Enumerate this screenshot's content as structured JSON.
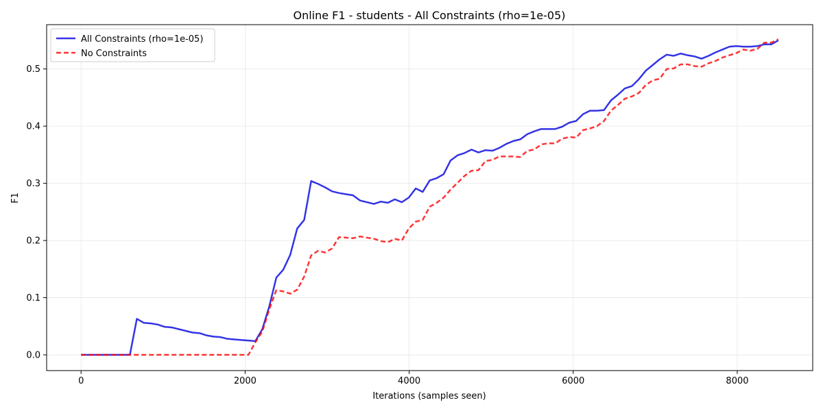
{
  "chart_data": {
    "type": "line",
    "title": "Online F1 - students - All Constraints (rho=1e-05)",
    "xlabel": "Iterations (samples seen)",
    "ylabel": "F1",
    "xlim": [
      -420,
      8920
    ],
    "ylim": [
      -0.0275,
      0.5775
    ],
    "x_ticks": [
      0,
      2000,
      4000,
      6000,
      8000
    ],
    "x_tick_labels": [
      "0",
      "2000",
      "4000",
      "6000",
      "8000"
    ],
    "y_ticks": [
      0.0,
      0.1,
      0.2,
      0.3,
      0.4,
      0.5
    ],
    "y_tick_labels": [
      "0.0",
      "0.1",
      "0.2",
      "0.3",
      "0.4",
      "0.5"
    ],
    "grid": true,
    "legend_position": "top-left",
    "series": [
      {
        "name": "All Constraints (rho=1e-05)",
        "color": "#0000e0",
        "style": "solid",
        "x": [
          0,
          85,
          170,
          255,
          340,
          425,
          510,
          595,
          680,
          765,
          850,
          935,
          1020,
          1105,
          1190,
          1275,
          1360,
          1445,
          1530,
          1615,
          1700,
          1785,
          1870,
          1955,
          2040,
          2125,
          2210,
          2295,
          2380,
          2465,
          2550,
          2635,
          2720,
          2805,
          2890,
          2975,
          3060,
          3145,
          3230,
          3315,
          3400,
          3485,
          3570,
          3655,
          3740,
          3825,
          3910,
          3995,
          4080,
          4165,
          4250,
          4335,
          4420,
          4505,
          4590,
          4675,
          4760,
          4845,
          4930,
          5015,
          5100,
          5185,
          5270,
          5355,
          5440,
          5525,
          5610,
          5695,
          5780,
          5865,
          5950,
          6035,
          6120,
          6205,
          6290,
          6375,
          6460,
          6545,
          6630,
          6715,
          6800,
          6885,
          6970,
          7055,
          7140,
          7225,
          7310,
          7395,
          7480,
          7565,
          7650,
          7735,
          7820,
          7905,
          7990,
          8075,
          8160,
          8245,
          8330,
          8415,
          8500
        ],
        "y": [
          0,
          0,
          0,
          0,
          0,
          0,
          0,
          0,
          0.063,
          0.056,
          0.055,
          0.053,
          0.049,
          0.048,
          0.045,
          0.042,
          0.039,
          0.038,
          0.034,
          0.032,
          0.031,
          0.028,
          0.027,
          0.026,
          0.025,
          0.024,
          0.045,
          0.085,
          0.135,
          0.149,
          0.175,
          0.221,
          0.236,
          0.304,
          0.299,
          0.293,
          0.286,
          0.283,
          0.281,
          0.279,
          0.27,
          0.267,
          0.264,
          0.268,
          0.266,
          0.272,
          0.267,
          0.275,
          0.291,
          0.285,
          0.305,
          0.309,
          0.316,
          0.34,
          0.349,
          0.353,
          0.359,
          0.354,
          0.358,
          0.357,
          0.362,
          0.369,
          0.374,
          0.377,
          0.386,
          0.391,
          0.395,
          0.395,
          0.395,
          0.399,
          0.406,
          0.409,
          0.421,
          0.427,
          0.427,
          0.428,
          0.445,
          0.455,
          0.466,
          0.47,
          0.482,
          0.497,
          0.507,
          0.517,
          0.525,
          0.523,
          0.527,
          0.524,
          0.522,
          0.518,
          0.523,
          0.529,
          0.534,
          0.539,
          0.54,
          0.539,
          0.539,
          0.54,
          0.543,
          0.543,
          0.55
        ]
      },
      {
        "name": "No Constraints",
        "color": "#ff0000",
        "style": "dashed",
        "x": [
          0,
          85,
          170,
          255,
          340,
          425,
          510,
          595,
          680,
          765,
          850,
          935,
          1020,
          1105,
          1190,
          1275,
          1360,
          1445,
          1530,
          1615,
          1700,
          1785,
          1870,
          1955,
          2040,
          2125,
          2210,
          2295,
          2380,
          2465,
          2550,
          2635,
          2720,
          2805,
          2890,
          2975,
          3060,
          3145,
          3230,
          3315,
          3400,
          3485,
          3570,
          3655,
          3740,
          3825,
          3910,
          3995,
          4080,
          4165,
          4250,
          4335,
          4420,
          4505,
          4590,
          4675,
          4760,
          4845,
          4930,
          5015,
          5100,
          5185,
          5270,
          5355,
          5440,
          5525,
          5610,
          5695,
          5780,
          5865,
          5950,
          6035,
          6120,
          6205,
          6290,
          6375,
          6460,
          6545,
          6630,
          6715,
          6800,
          6885,
          6970,
          7055,
          7140,
          7225,
          7310,
          7395,
          7480,
          7565,
          7650,
          7735,
          7820,
          7905,
          7990,
          8075,
          8160,
          8245,
          8330,
          8415,
          8500
        ],
        "y": [
          0,
          0,
          0,
          0,
          0,
          0,
          0,
          0,
          0,
          0,
          0,
          0,
          0,
          0,
          0,
          0,
          0,
          0,
          0,
          0,
          0,
          0,
          0,
          0,
          0,
          0.022,
          0.041,
          0.08,
          0.113,
          0.111,
          0.107,
          0.114,
          0.137,
          0.174,
          0.182,
          0.179,
          0.186,
          0.206,
          0.205,
          0.204,
          0.207,
          0.205,
          0.203,
          0.199,
          0.197,
          0.203,
          0.2,
          0.221,
          0.233,
          0.236,
          0.259,
          0.266,
          0.275,
          0.289,
          0.301,
          0.313,
          0.322,
          0.323,
          0.339,
          0.341,
          0.347,
          0.347,
          0.347,
          0.346,
          0.357,
          0.359,
          0.368,
          0.37,
          0.37,
          0.378,
          0.381,
          0.38,
          0.393,
          0.396,
          0.4,
          0.409,
          0.427,
          0.437,
          0.448,
          0.452,
          0.458,
          0.472,
          0.48,
          0.483,
          0.5,
          0.501,
          0.508,
          0.508,
          0.505,
          0.504,
          0.51,
          0.514,
          0.52,
          0.524,
          0.528,
          0.534,
          0.532,
          0.535,
          0.546,
          0.546,
          0.552
        ]
      }
    ]
  }
}
